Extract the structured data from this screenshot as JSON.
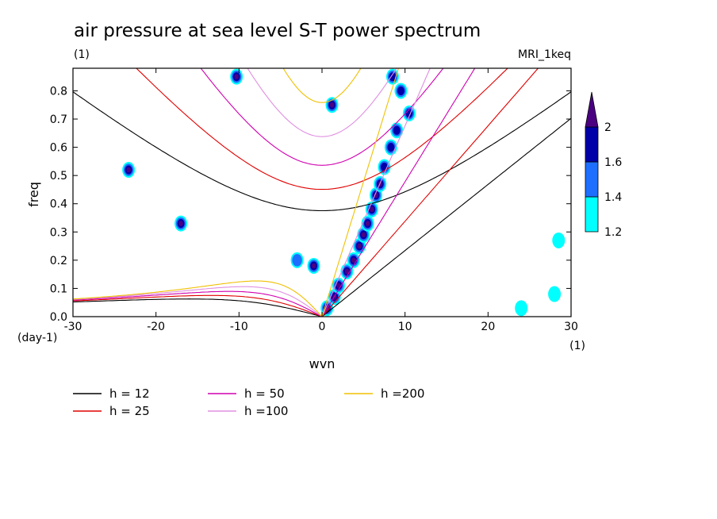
{
  "chart_data": {
    "type": "heatmap",
    "title": "air pressure at sea level S-T power spectrum",
    "subtitle_left": "(1)",
    "subtitle_right": "MRI_1keq",
    "xlabel": "wvn",
    "ylabel": "freq",
    "x_unit": "(1)",
    "y_unit": "(day-1)",
    "xlim": [
      -30,
      30
    ],
    "ylim": [
      0,
      0.88
    ],
    "xticks": [
      -30,
      -20,
      -10,
      0,
      10,
      20,
      30
    ],
    "xtick_labels": [
      "-30",
      "-20",
      "-10",
      "0",
      "10",
      "20",
      "30"
    ],
    "yticks": [
      0,
      0.1,
      0.2,
      0.3,
      0.4,
      0.5,
      0.6,
      0.7,
      0.8
    ],
    "ytick_labels": [
      "0.0",
      "0.1",
      "0.2",
      "0.3",
      "0.4",
      "0.5",
      "0.6",
      "0.7",
      "0.8"
    ],
    "colorbar": {
      "levels": [
        1.2,
        1.4,
        1.6,
        2
      ],
      "labels": [
        "1.2",
        "1.4",
        "1.6",
        "2"
      ],
      "colors": [
        "#00ffff",
        "#1e6fff",
        "#0000a8",
        "#4b0082"
      ]
    },
    "dispersion_curves": [
      {
        "label": "h = 12",
        "h": 12,
        "color": "#000000"
      },
      {
        "label": "h = 25",
        "h": 25,
        "color": "#e00000"
      },
      {
        "label": "h = 50",
        "h": 50,
        "color": "#d000b0"
      },
      {
        "label": "h =100",
        "h": 100,
        "color": "#e090e0"
      },
      {
        "label": "h =200",
        "h": 200,
        "color": "#f0c000"
      }
    ],
    "power_blobs": [
      {
        "k": 0.6,
        "f": 0.03,
        "level": 3
      },
      {
        "k": 1.5,
        "f": 0.07,
        "level": 3
      },
      {
        "k": 2.0,
        "f": 0.11,
        "level": 3
      },
      {
        "k": 3.0,
        "f": 0.16,
        "level": 3
      },
      {
        "k": 3.8,
        "f": 0.2,
        "level": 3
      },
      {
        "k": 4.5,
        "f": 0.25,
        "level": 3
      },
      {
        "k": 5.0,
        "f": 0.29,
        "level": 3
      },
      {
        "k": 5.5,
        "f": 0.33,
        "level": 3
      },
      {
        "k": 6.0,
        "f": 0.38,
        "level": 3
      },
      {
        "k": 6.5,
        "f": 0.43,
        "level": 3
      },
      {
        "k": 7.0,
        "f": 0.47,
        "level": 3
      },
      {
        "k": 7.5,
        "f": 0.53,
        "level": 2
      },
      {
        "k": 8.3,
        "f": 0.6,
        "level": 2
      },
      {
        "k": 9.0,
        "f": 0.66,
        "level": 2
      },
      {
        "k": 10.5,
        "f": 0.72,
        "level": 2
      },
      {
        "k": 9.5,
        "f": 0.8,
        "level": 2
      },
      {
        "k": 8.5,
        "f": 0.85,
        "level": 2
      },
      {
        "k": 1.2,
        "f": 0.75,
        "level": 3
      },
      {
        "k": -10.3,
        "f": 0.85,
        "level": 3
      },
      {
        "k": -17.0,
        "f": 0.33,
        "level": 3
      },
      {
        "k": -23.3,
        "f": 0.52,
        "level": 3
      },
      {
        "k": -1.0,
        "f": 0.18,
        "level": 3
      },
      {
        "k": -3.0,
        "f": 0.2,
        "level": 1
      },
      {
        "k": 24.0,
        "f": 0.03,
        "level": 0
      },
      {
        "k": 28.5,
        "f": 0.27,
        "level": 0
      },
      {
        "k": 28.0,
        "f": 0.08,
        "level": 0
      }
    ]
  },
  "legend": {
    "items": [
      "h = 12",
      "h = 25",
      "h = 50",
      "h =100",
      "h =200"
    ]
  }
}
